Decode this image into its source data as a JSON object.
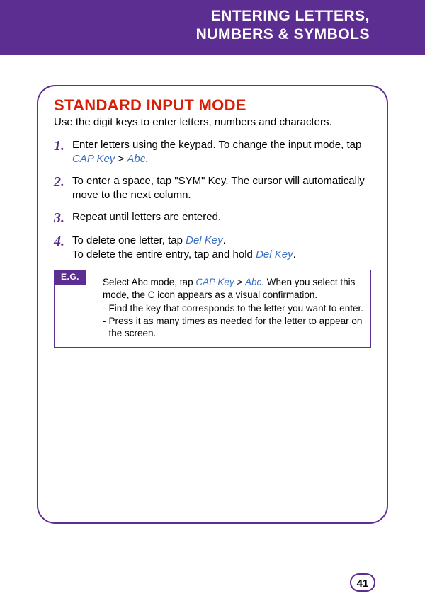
{
  "header": {
    "line1": "ENTERING LETTERS,",
    "line2": "NUMBERS & SYMBOLS"
  },
  "section": {
    "title": "STANDARD INPUT MODE",
    "intro": "Use the digit keys to enter letters, numbers and characters."
  },
  "steps": [
    {
      "num": "1.",
      "pre": "Enter letters using the keypad. To change the input mode, tap ",
      "link1": "CAP Key",
      "mid": " > ",
      "link2": "Abc",
      "post": "."
    },
    {
      "num": "2.",
      "pre": "To enter a space, tap \"SYM\" Key. The cursor will automatically move to the next column.",
      "link1": "",
      "mid": "",
      "link2": "",
      "post": ""
    },
    {
      "num": "3.",
      "pre": "Repeat until letters are entered.",
      "link1": "",
      "mid": "",
      "link2": "",
      "post": ""
    },
    {
      "num": "4.",
      "line1_pre": "To delete one letter, tap ",
      "line1_link": "Del Key",
      "line1_post": ".",
      "line2_pre": "To delete the entire entry, tap and hold ",
      "line2_link": "Del Key",
      "line2_post": "."
    }
  ],
  "eg": {
    "badge": "E.G.",
    "lead_pre": "Select Abc mode, tap ",
    "lead_link1": "CAP Key",
    "lead_mid": " > ",
    "lead_link2": "Abc",
    "lead_post": ". When you select this mode, the C icon appears as a visual confirmation.",
    "bullets": [
      "Find the key that corresponds to the letter you want to enter.",
      "Press it as many times as needed for the letter to appear on the screen."
    ]
  },
  "page_number": "41",
  "colors": {
    "purple": "#5d2e91",
    "red": "#d81e05",
    "link": "#3a6fc4"
  }
}
